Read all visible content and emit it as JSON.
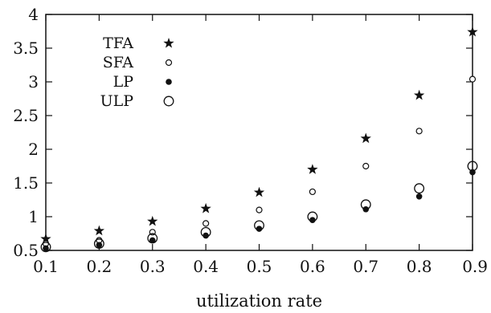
{
  "chart_data": {
    "type": "scatter",
    "title": "",
    "xlabel": "utilization rate",
    "ylabel": "",
    "x": [
      0.1,
      0.2,
      0.3,
      0.4,
      0.5,
      0.6,
      0.7,
      0.8,
      0.9
    ],
    "xlim": [
      0.1,
      0.9
    ],
    "ylim": [
      0.5,
      4
    ],
    "xticks": [
      "0.1",
      "0.2",
      "0.3",
      "0.4",
      "0.5",
      "0.6",
      "0.7",
      "0.8",
      "0.9"
    ],
    "yticks": [
      "0.5",
      "1",
      "1.5",
      "2",
      "2.5",
      "3",
      "3.5",
      "4"
    ],
    "grid": false,
    "legend_position": "top-left",
    "series": [
      {
        "name": "TFA",
        "marker": "star",
        "values": [
          0.67,
          0.79,
          0.93,
          1.12,
          1.36,
          1.7,
          2.16,
          2.8,
          3.74
        ]
      },
      {
        "name": "SFA",
        "marker": "small-open-circle",
        "values": [
          0.6,
          0.65,
          0.77,
          0.9,
          1.1,
          1.37,
          1.75,
          2.27,
          3.04
        ]
      },
      {
        "name": "LP",
        "marker": "filled-circle",
        "values": [
          0.53,
          0.58,
          0.65,
          0.72,
          0.82,
          0.95,
          1.11,
          1.3,
          1.66
        ]
      },
      {
        "name": "ULP",
        "marker": "large-open-circle",
        "values": [
          0.55,
          0.6,
          0.68,
          0.77,
          0.87,
          1.0,
          1.18,
          1.42,
          1.75
        ]
      }
    ],
    "colors": {
      "axis": "#111111",
      "marker": "#111111"
    }
  }
}
